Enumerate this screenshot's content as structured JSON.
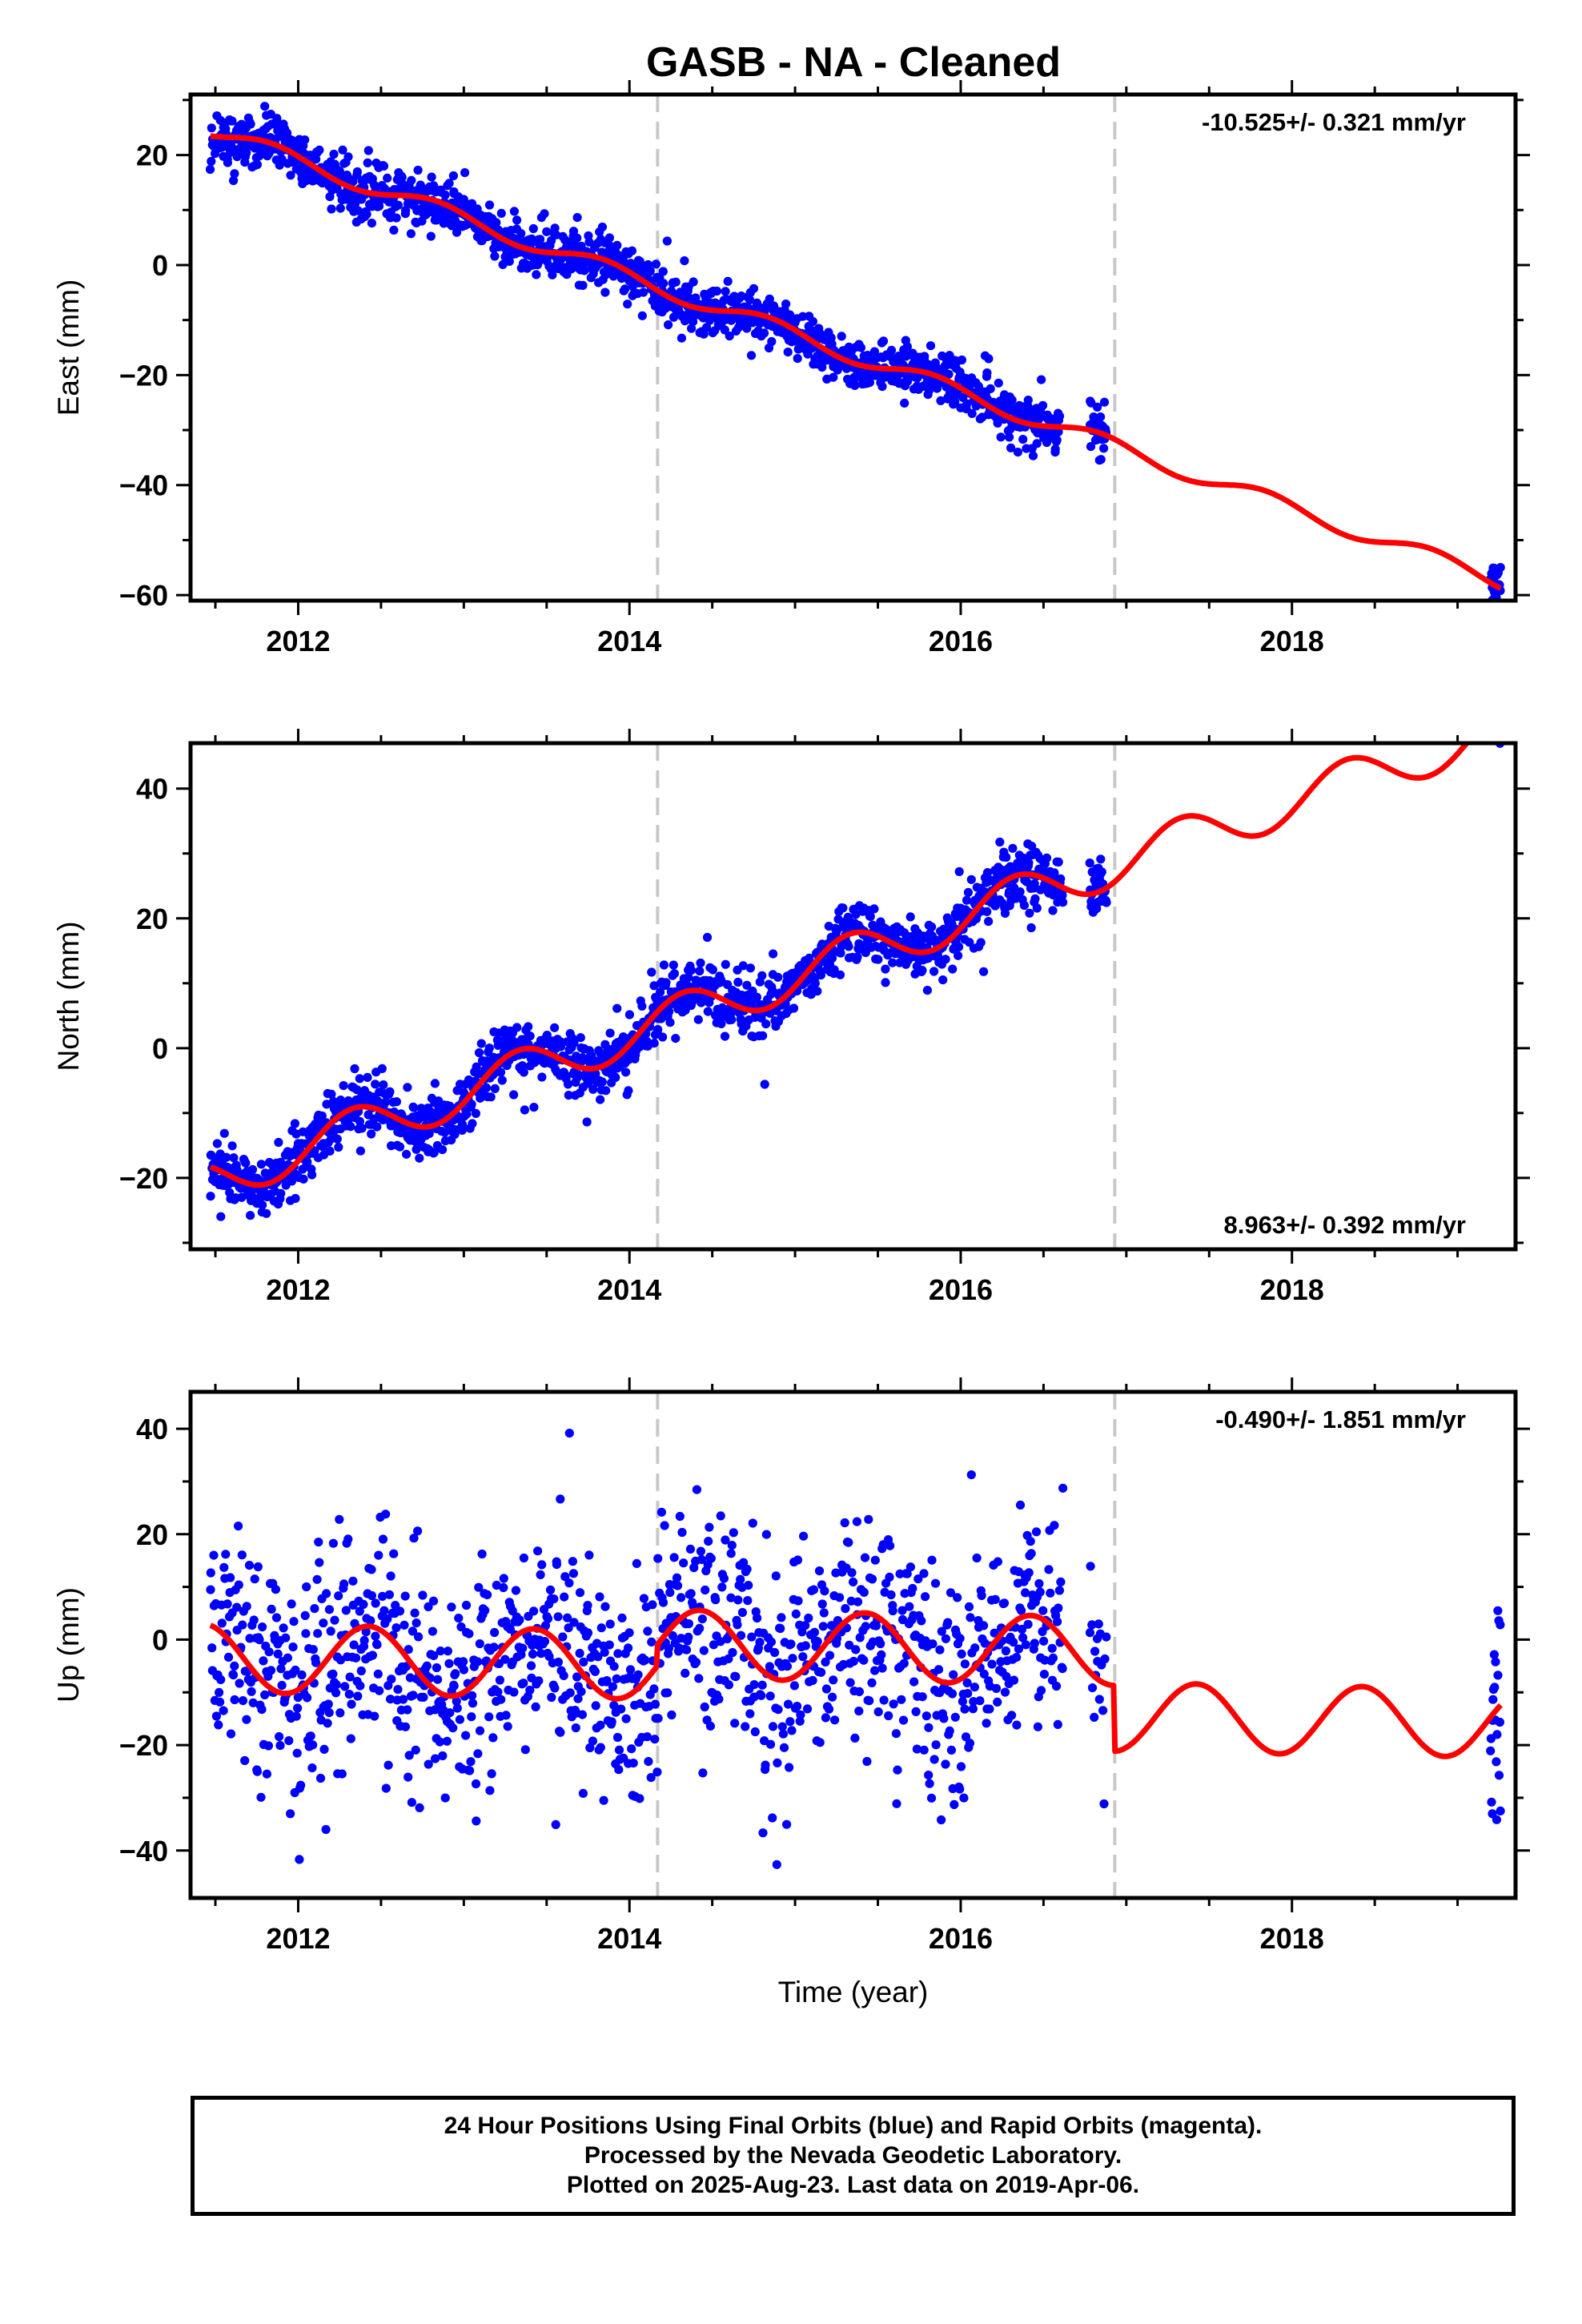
{
  "title": "GASB  - NA - Cleaned",
  "colors": {
    "data": "#0000ff",
    "model": "#ff0000",
    "break_lines": "#c8c8c8",
    "axes": "#000000"
  },
  "footer": {
    "line1": "24 Hour Positions Using Final Orbits (blue) and Rapid Orbits (magenta).",
    "line2": "Processed by the Nevada Geodetic Laboratory.",
    "line3": "Plotted on 2025-Aug-23. Last data on 2019-Apr-06."
  },
  "chart_data": [
    {
      "type": "scatter",
      "title": "GASB  - NA - Cleaned",
      "xlabel": "",
      "ylabel": "East (mm)",
      "xlim": [
        2011.35,
        2019.35
      ],
      "ylim": [
        -61,
        31
      ],
      "x_ticks": [
        2012,
        2014,
        2016,
        2018
      ],
      "y_ticks": [
        -60,
        -40,
        -20,
        0,
        20
      ],
      "break_lines": [
        2014.17,
        2016.93
      ],
      "annotation": "-10.525+/- 0.321 mm/yr",
      "annotation_position": "top-right",
      "series": [
        {
          "style": "points",
          "segments": [
            {
              "x_start": 2011.47,
              "x_end": 2016.6,
              "step": 0.0035
            },
            {
              "x_start": 2016.78,
              "x_end": 2016.88,
              "step": 0.003
            },
            {
              "x_start": 2019.2,
              "x_end": 2019.26,
              "step": 0.002
            }
          ],
          "scatter_mm": 2.2
        },
        {
          "style": "line",
          "x_start": 2011.47,
          "x_end": 2019.26,
          "offset": 24.5,
          "rate": -10.525,
          "seasonal": [
            {
              "period": 1.0,
              "amplitude": 1.5,
              "phase": 2.56
            }
          ]
        }
      ]
    },
    {
      "type": "scatter",
      "xlabel": "",
      "ylabel": "North (mm)",
      "xlim": [
        2011.35,
        2019.35
      ],
      "ylim": [
        -31,
        47
      ],
      "x_ticks": [
        2012,
        2014,
        2016,
        2018
      ],
      "y_ticks": [
        -20,
        0,
        20,
        40
      ],
      "break_lines": [
        2014.17,
        2016.93
      ],
      "annotation": "8.963+/- 0.392 mm/yr",
      "annotation_position": "bottom-right",
      "series": [
        {
          "style": "points",
          "segments": [
            {
              "x_start": 2011.47,
              "x_end": 2016.62,
              "step": 0.0035
            },
            {
              "x_start": 2016.78,
              "x_end": 2016.88,
              "step": 0.003
            },
            {
              "x_start": 2019.2,
              "x_end": 2019.26,
              "step": 0.002
            }
          ],
          "scatter_mm": 2.3
        },
        {
          "style": "line",
          "x_start": 2011.47,
          "x_end": 2019.26,
          "offset": -20.5,
          "rate": 8.963,
          "seasonal": [
            {
              "period": 1.0,
              "amplitude": 3.5,
              "phase": 5.8
            }
          ]
        }
      ]
    },
    {
      "type": "scatter",
      "xlabel": "Time (year)",
      "ylabel": "Up (mm)",
      "xlim": [
        2011.35,
        2019.35
      ],
      "ylim": [
        -49,
        47
      ],
      "x_ticks": [
        2012,
        2014,
        2016,
        2018
      ],
      "y_ticks": [
        -40,
        -20,
        0,
        20,
        40
      ],
      "break_lines": [
        2014.17,
        2016.93
      ],
      "annotation": "-0.490+/- 1.851 mm/yr",
      "annotation_position": "top-right",
      "series": [
        {
          "style": "points",
          "segments": [
            {
              "x_start": 2011.47,
              "x_end": 2016.62,
              "step": 0.0045
            },
            {
              "x_start": 2016.78,
              "x_end": 2016.88,
              "step": 0.006
            },
            {
              "x_start": 2019.2,
              "x_end": 2019.26,
              "step": 0.003
            }
          ],
          "scatter_mm": 10.5
        },
        {
          "style": "line",
          "x_start": 2011.47,
          "x_end": 2019.26,
          "offset": -3.5,
          "rate": -0.49,
          "seasonal": [
            {
              "period": 1.0,
              "amplitude": 6.5,
              "phase": 5.2
            }
          ],
          "steps": [
            {
              "x": 2014.17,
              "delta": 4.0
            },
            {
              "x": 2016.93,
              "delta": -12.5
            }
          ]
        }
      ]
    }
  ]
}
